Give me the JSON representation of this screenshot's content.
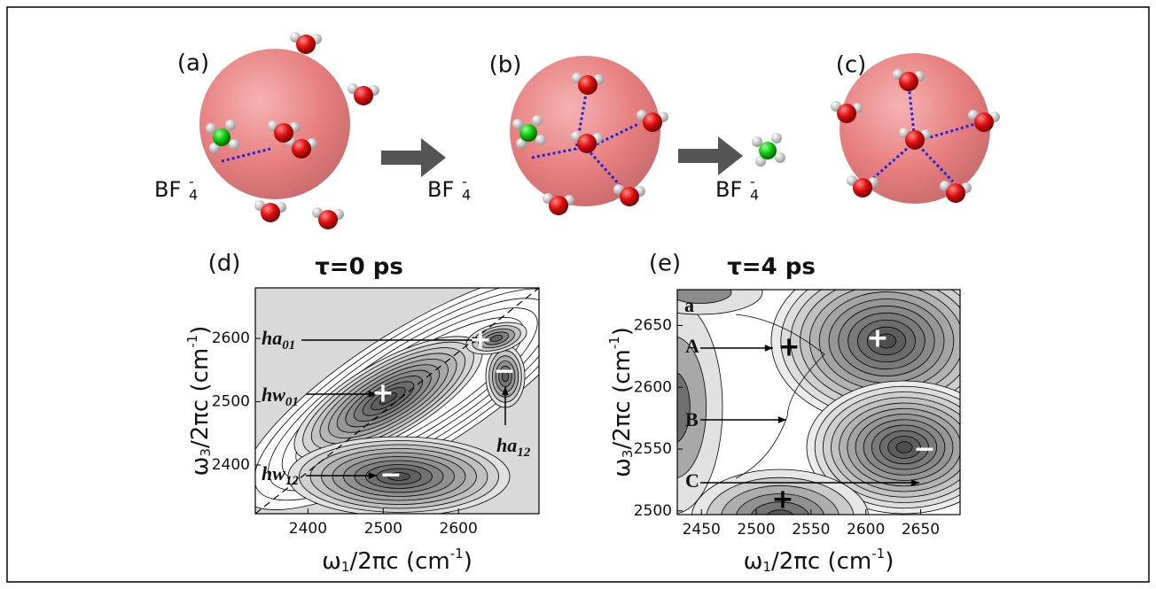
{
  "top_panels": [
    {
      "label": "(a)",
      "ion": {
        "base": "BF",
        "sub": "4",
        "sup": "-"
      }
    },
    {
      "label": "(b)",
      "ion": {
        "base": "BF",
        "sub": "4",
        "sup": "-"
      }
    },
    {
      "label": "(c)",
      "ion": {
        "base": "BF",
        "sub": "4",
        "sup": "-"
      }
    }
  ],
  "plots": [
    {
      "label": "(d)",
      "title": "τ=0 ps",
      "xlabel": {
        "main": "ω",
        "sub": "1",
        "mid": "/2πc (cm",
        "sup": "-1",
        "end": ")"
      },
      "ylabel": {
        "main": "ω",
        "sub": "3",
        "mid": "/2πc (cm",
        "sup": "-1",
        "end": ")"
      },
      "xlim": [
        2330,
        2707
      ],
      "xticks": [
        2400,
        2500,
        2600
      ],
      "ylim": [
        2323,
        2680
      ],
      "yticks": [
        2400,
        2500,
        2600
      ],
      "annotations": [
        {
          "base": "ha",
          "sub": "01"
        },
        {
          "base": "hw",
          "sub": "01"
        },
        {
          "base": "hw",
          "sub": "12"
        },
        {
          "base": "ha",
          "sub": "12"
        }
      ],
      "markers": [
        "+",
        "+",
        "−",
        "−"
      ]
    },
    {
      "label": "(e)",
      "title": "τ=4 ps",
      "xlabel": {
        "main": "ω",
        "sub": "1",
        "mid": "/2πc (cm",
        "sup": "-1",
        "end": ")"
      },
      "ylabel": {
        "main": "ω",
        "sub": "3",
        "mid": "/2πc (cm",
        "sup": "-1",
        "end": ")"
      },
      "xlim": [
        2428,
        2686
      ],
      "xticks": [
        2450,
        2500,
        2550,
        2600,
        2650
      ],
      "ylim": [
        2497,
        2679
      ],
      "yticks": [
        2500,
        2550,
        2600,
        2650
      ],
      "annotations": [
        {
          "base": "a"
        },
        {
          "base": "A"
        },
        {
          "base": "B"
        },
        {
          "base": "C"
        }
      ],
      "markers": [
        "+",
        "+",
        "−",
        "+"
      ]
    }
  ]
}
